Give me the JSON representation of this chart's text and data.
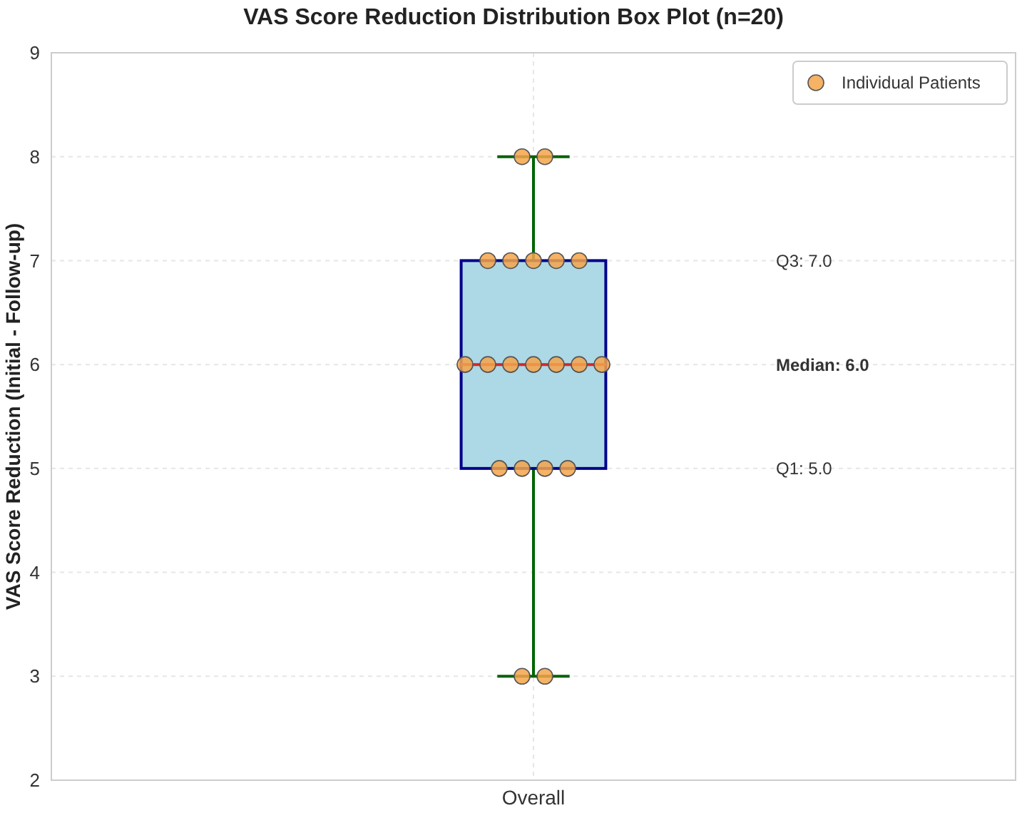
{
  "chart_data": {
    "type": "box",
    "title": "VAS Score Reduction Distribution Box Plot (n=20)",
    "ylabel": "VAS Score Reduction (Initial - Follow-up)",
    "categories": [
      "Overall"
    ],
    "series": [
      {
        "color": "#add8e6",
        "boxes": [
          {
            "low": 3,
            "q1": 5,
            "median": 6,
            "q3": 7,
            "high": 8
          }
        ]
      },
      {
        "type": "scatter",
        "name": "Individual Patients",
        "color": "#f5a54a",
        "x": [
          "Overall",
          "Overall",
          "Overall",
          "Overall",
          "Overall",
          "Overall",
          "Overall",
          "Overall",
          "Overall",
          "Overall",
          "Overall",
          "Overall",
          "Overall",
          "Overall",
          "Overall",
          "Overall",
          "Overall",
          "Overall",
          "Overall",
          "Overall"
        ],
        "values": [
          8,
          8,
          7,
          7,
          7,
          7,
          7,
          6,
          6,
          6,
          6,
          6,
          6,
          6,
          5,
          5,
          5,
          5,
          3,
          3
        ]
      }
    ],
    "annotations": [
      "Q3: 7.0",
      "Median: 6.0",
      "Q1: 5.0"
    ],
    "ylim": [
      2,
      9
    ],
    "yticks": [
      2,
      3,
      4,
      5,
      6,
      7,
      8,
      9
    ],
    "grid": true,
    "legend": "top right",
    "marker": "circle"
  }
}
